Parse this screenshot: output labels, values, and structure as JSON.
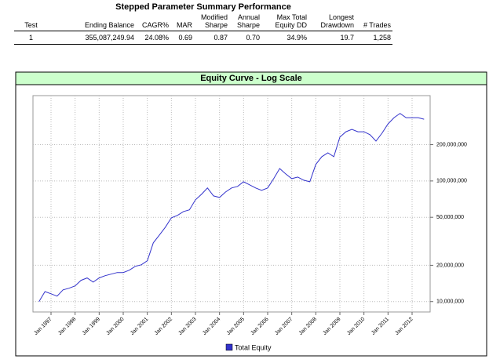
{
  "table": {
    "title": "Stepped Parameter Summary Performance",
    "header": [
      "Test",
      "Ending Balance",
      "CAGR%",
      "MAR",
      "Modified Sharpe",
      "Annual Sharpe",
      "Max Total Equity DD",
      "Longest Drawdown",
      "# Trades"
    ],
    "rows": [
      [
        "1",
        "355,087,249.94",
        "24.08%",
        "0.69",
        "0.87",
        "0.70",
        "34.9%",
        "19.7",
        "1,258"
      ]
    ]
  },
  "chart_data": {
    "type": "line",
    "title": "Equity Curve - Log Scale",
    "yscale": "log",
    "grid": true,
    "legend": "bottom",
    "x": [
      "Jul 1996",
      "Oct 1996",
      "Jan 1997",
      "Apr 1997",
      "Jul 1997",
      "Oct 1997",
      "Jan 1998",
      "Apr 1998",
      "Jul 1998",
      "Oct 1998",
      "Jan 1999",
      "Apr 1999",
      "Jul 1999",
      "Oct 1999",
      "Jan 2000",
      "Apr 2000",
      "Jul 2000",
      "Oct 2000",
      "Jan 2001",
      "Apr 2001",
      "Jul 2001",
      "Oct 2001",
      "Jan 2002",
      "Apr 2002",
      "Jul 2002",
      "Oct 2002",
      "Jan 2003",
      "Apr 2003",
      "Jul 2003",
      "Oct 2003",
      "Jan 2004",
      "Apr 2004",
      "Jul 2004",
      "Oct 2004",
      "Jan 2005",
      "Apr 2005",
      "Jul 2005",
      "Oct 2005",
      "Jan 2006",
      "Apr 2006",
      "Jul 2006",
      "Oct 2006",
      "Jan 2007",
      "Apr 2007",
      "Jul 2007",
      "Oct 2007",
      "Jan 2008",
      "Apr 2008",
      "Jul 2008",
      "Oct 2008",
      "Jan 2009",
      "Apr 2009",
      "Jul 2009",
      "Oct 2009",
      "Jan 2010",
      "Apr 2010",
      "Jul 2010",
      "Oct 2010",
      "Jan 2011",
      "Apr 2011",
      "Jul 2011",
      "Oct 2011",
      "Jan 2012",
      "Apr 2012",
      "Jul 2012"
    ],
    "series": [
      {
        "name": "Total Equity",
        "color": "#3333cc",
        "values": [
          10000000,
          12100000,
          11600000,
          11100000,
          12500000,
          12900000,
          13500000,
          15000000,
          15700000,
          14500000,
          15700000,
          16400000,
          16900000,
          17400000,
          17400000,
          18200000,
          19600000,
          20200000,
          21800000,
          30700000,
          35600000,
          41400000,
          49500000,
          51800000,
          55800000,
          57600000,
          69800000,
          77500000,
          87500000,
          75200000,
          73000000,
          81000000,
          87500000,
          90200000,
          98500000,
          92900000,
          87500000,
          83600000,
          87500000,
          104600000,
          126800000,
          114400000,
          104600000,
          107800000,
          101500000,
          98500000,
          137000000,
          159000000,
          171000000,
          159000000,
          231000000,
          256000000,
          268000000,
          256000000,
          256000000,
          242000000,
          214000000,
          249000000,
          297000000,
          335000000,
          363000000,
          335000000,
          335000000,
          335000000,
          325000000
        ]
      }
    ],
    "xlim": [
      "Apr 1996",
      "Oct 2012"
    ],
    "xticks": [
      "Jan 1997",
      "Jan 1998",
      "Jan 1999",
      "Jan 2000",
      "Jan 2001",
      "Jan 2002",
      "Jan 2003",
      "Jan 2004",
      "Jan 2005",
      "Jan 2006",
      "Jan 2007",
      "Jan 2008",
      "Jan 2009",
      "Jan 2010",
      "Jan 2011",
      "Jan 2012"
    ],
    "ylim": [
      8200000,
      510000000
    ],
    "yticks": [
      {
        "value": 10000000,
        "label": "10,000,000"
      },
      {
        "value": 20000000,
        "label": "20,000,000"
      },
      {
        "value": 50000000,
        "label": "50,000,000"
      },
      {
        "value": 100000000,
        "label": "100,000,000"
      },
      {
        "value": 200000000,
        "label": "200,000,000"
      }
    ]
  }
}
